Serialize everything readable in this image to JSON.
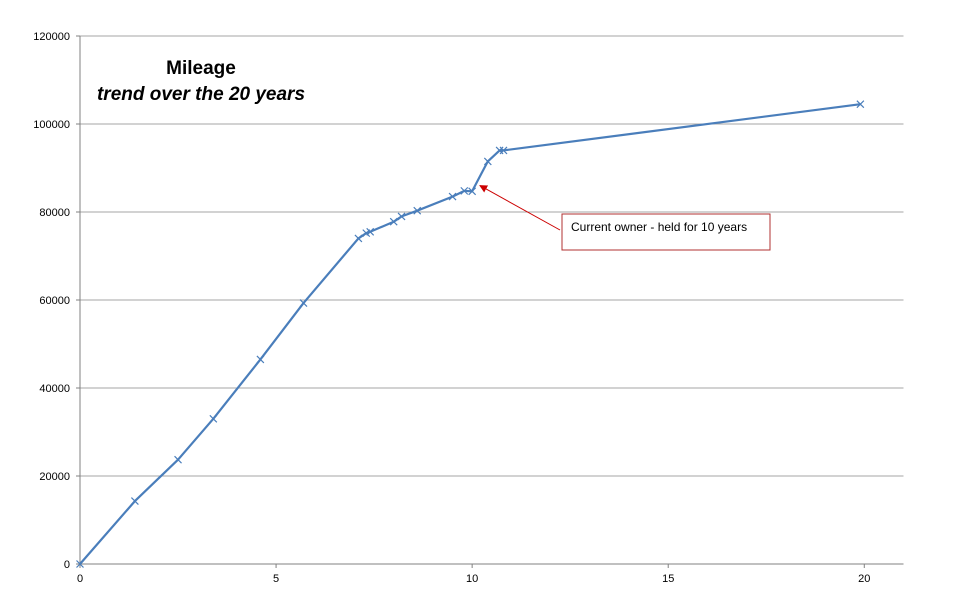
{
  "chart_data": {
    "type": "line",
    "title": "Mileage",
    "subtitle": "trend over the 20 years",
    "xlabel": "",
    "ylabel": "",
    "xlim": [
      0,
      21
    ],
    "ylim": [
      0,
      120000
    ],
    "x_ticks": [
      0,
      5,
      10,
      15,
      20
    ],
    "y_ticks": [
      0,
      20000,
      40000,
      60000,
      80000,
      100000,
      120000
    ],
    "grid": "horizontal",
    "legend": "none",
    "series": [
      {
        "color": "#4a7ebb",
        "points": [
          [
            0,
            0
          ],
          [
            1.4,
            14300
          ],
          [
            2.5,
            23700
          ],
          [
            3.4,
            33000
          ],
          [
            4.6,
            46500
          ],
          [
            5.7,
            59300
          ],
          [
            7.1,
            74000
          ],
          [
            7.3,
            75200
          ],
          [
            7.4,
            75500
          ],
          [
            8.0,
            77800
          ],
          [
            8.2,
            79000
          ],
          [
            8.6,
            80300
          ],
          [
            9.5,
            83500
          ],
          [
            9.8,
            84800
          ],
          [
            10.0,
            84700
          ],
          [
            10.4,
            91500
          ],
          [
            10.7,
            94000
          ],
          [
            10.8,
            94000
          ],
          [
            19.9,
            104500
          ]
        ]
      }
    ],
    "annotation": {
      "text": "Current owner - held for 10 years",
      "arrow_to": [
        10.2,
        86000
      ],
      "arrow_color": "#cc0000",
      "box_border_color": "#b03030"
    }
  }
}
